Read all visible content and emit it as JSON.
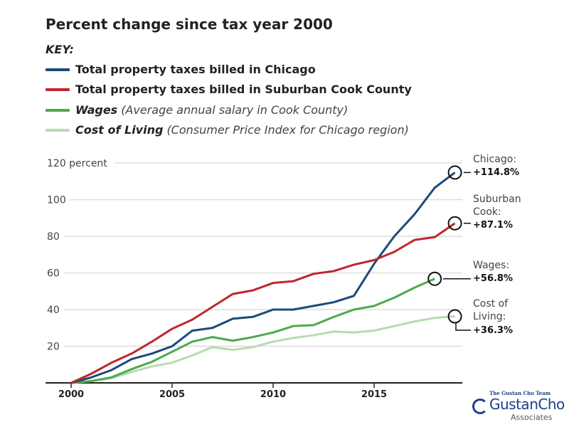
{
  "chart_data": {
    "type": "line",
    "title": "Percent change since tax year 2000",
    "key_label": "KEY:",
    "x": [
      2000,
      2001,
      2002,
      2003,
      2004,
      2005,
      2006,
      2007,
      2008,
      2009,
      2010,
      2011,
      2012,
      2013,
      2014,
      2015,
      2016,
      2017,
      2018,
      2019
    ],
    "xticks": [
      "2000",
      "2005",
      "2010",
      "2015"
    ],
    "yticks": [
      "20",
      "40",
      "60",
      "80",
      "100",
      "120 percent"
    ],
    "ylim": [
      0,
      120
    ],
    "grid": true,
    "series": [
      {
        "name": "Total property taxes billed in Chicago",
        "note": "",
        "color": "#1a4a7a",
        "end_label": "Chicago:",
        "end_value": "+114.8%",
        "values": [
          0,
          3,
          7,
          13,
          16,
          20,
          28.5,
          30,
          35,
          36,
          40,
          40,
          42,
          44,
          47.5,
          65,
          80,
          92,
          106.5,
          114.8
        ]
      },
      {
        "name": "Total property taxes billed in Suburban Cook County",
        "note": "",
        "color": "#c0272d",
        "end_label": "Suburban Cook:",
        "end_value": "+87.1%",
        "values": [
          0,
          5,
          11,
          16,
          22.5,
          29.5,
          34.5,
          41.5,
          48.5,
          50.5,
          54.5,
          55.5,
          59.5,
          61,
          64.5,
          67,
          71.5,
          78,
          79.5,
          87.1
        ]
      },
      {
        "name": "Wages",
        "note": "(Average annual salary in Cook County)",
        "color": "#4caa4c",
        "end_label": "Wages:",
        "end_value": "+56.8%",
        "values": [
          0,
          1,
          3,
          7.5,
          11.5,
          17,
          22.5,
          25,
          23,
          25,
          27.5,
          31,
          31.5,
          36,
          40,
          42,
          46.5,
          52,
          56.8,
          null
        ]
      },
      {
        "name": "Cost of Living",
        "note": "(Consumer Price Index for Chicago region)",
        "color": "#b5dcb0",
        "end_label": "Cost of Living:",
        "end_value": "+36.3%",
        "values": [
          0,
          1,
          2.5,
          6,
          9,
          11,
          15,
          19.5,
          18,
          19.5,
          22.5,
          24.5,
          26,
          28,
          27.5,
          28.5,
          31,
          33.5,
          35.5,
          36.3
        ]
      }
    ]
  },
  "logo": {
    "tagline": "The Gustan Cho Team",
    "name": "GustanCho",
    "sub": "Associates"
  }
}
